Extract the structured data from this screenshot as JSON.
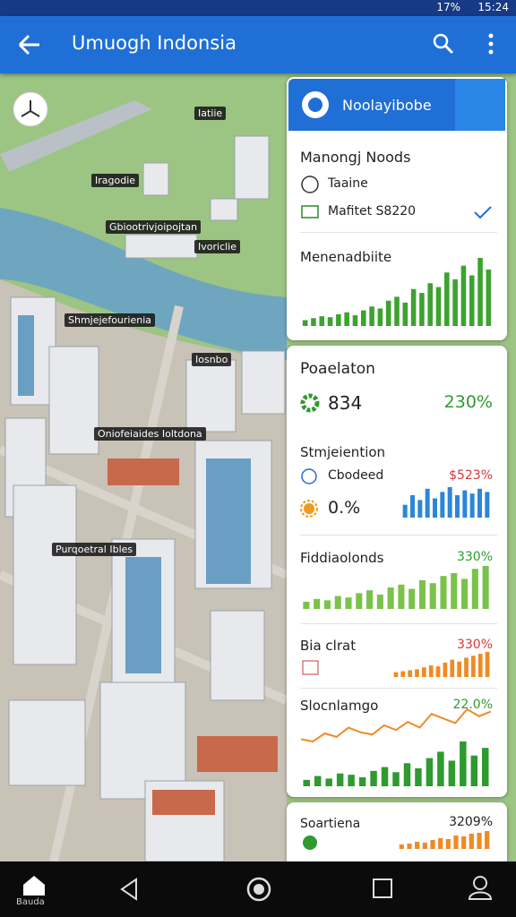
{
  "status_bar": {
    "battery": "17%",
    "time": "15:24"
  },
  "app_bar": {
    "title": "Umuogh Indonsia"
  },
  "map": {
    "labels": [
      "Iatiie",
      "Iragodie",
      "Gbiootrivjoipojtan",
      "Ivoriclie",
      "Shmjejefourienia",
      "Iosnbo",
      "Oniofeiaides Ioltdona",
      "Purqoetral Ibles"
    ]
  },
  "panel": {
    "header": "Noolayibobe",
    "section": "Manongj Noods",
    "options": [
      "Taaine",
      "Mafitet S8220"
    ],
    "chart": {
      "title": "Menenadbiite",
      "values": [
        6,
        8,
        10,
        9,
        12,
        14,
        11,
        16,
        20,
        18,
        26,
        30,
        24,
        38,
        34,
        44,
        40,
        55,
        48,
        62,
        52,
        70,
        58
      ]
    }
  },
  "stats": {
    "title": "Poaelaton",
    "value": "834",
    "change": "230%",
    "rows": [
      {
        "title": "Stmjeiention",
        "label": "Cbodeed",
        "change": "$523%",
        "sub": "0.%",
        "values": [
          40,
          70,
          55,
          90,
          60,
          80,
          95,
          70,
          85,
          75,
          90,
          80
        ]
      },
      {
        "title": "Fiddiaolonds",
        "change": "330%",
        "values": [
          10,
          14,
          12,
          18,
          16,
          22,
          26,
          20,
          30,
          34,
          28,
          40,
          36,
          46,
          50,
          42,
          56,
          60
        ]
      },
      {
        "title": "Bia clrat",
        "change": "330%",
        "values": [
          10,
          12,
          14,
          16,
          20,
          24,
          22,
          30,
          36,
          32,
          40,
          44,
          48,
          52
        ]
      },
      {
        "title": "Slocnlamgo",
        "change": "22.0%",
        "line_values": [
          40,
          38,
          45,
          42,
          50,
          46,
          44,
          52,
          48,
          55,
          50,
          62,
          58,
          54,
          66,
          60,
          64
        ],
        "values": [
          10,
          16,
          12,
          20,
          18,
          14,
          24,
          30,
          22,
          36,
          28,
          44,
          54,
          40,
          70,
          48,
          60
        ]
      }
    ]
  },
  "extra": {
    "title": "Soartiena",
    "change": "3209%",
    "values": [
      10,
      12,
      16,
      14,
      20,
      24,
      22,
      30,
      28,
      34,
      36,
      40
    ]
  },
  "nav": {
    "home": "Bauda"
  }
}
